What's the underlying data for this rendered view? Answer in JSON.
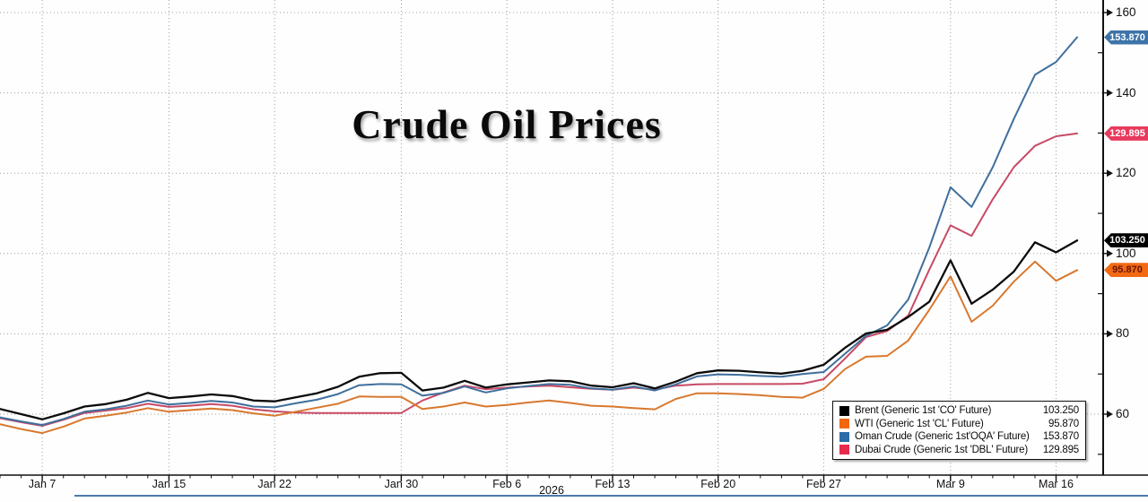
{
  "title": "Crude Oil Prices",
  "axis": {
    "year_label": "2026",
    "x_ticks": [
      {
        "label": "Jan 7",
        "i": 2
      },
      {
        "label": "Jan 15",
        "i": 8
      },
      {
        "label": "Jan 22",
        "i": 13
      },
      {
        "label": "Jan 30",
        "i": 19
      },
      {
        "label": "Feb 6",
        "i": 24
      },
      {
        "label": "Feb 13",
        "i": 29
      },
      {
        "label": "Feb 20",
        "i": 34
      },
      {
        "label": "Feb 27",
        "i": 39
      },
      {
        "label": "Mar 9",
        "i": 45
      },
      {
        "label": "Mar 16",
        "i": 50
      }
    ],
    "y_major_ticks": [
      60,
      80,
      100,
      120,
      140,
      160
    ],
    "y_minor_ticks": [
      50,
      70,
      90,
      110,
      130,
      150
    ]
  },
  "chart_data": {
    "type": "line",
    "x_axis": "Trading days, early Jan 2026 to mid Mar 2026",
    "y_range": [
      50,
      163
    ],
    "grid": "dotted gray, horizontal every 20, vertical at date ticks",
    "legend_position": "bottom-right",
    "series": [
      {
        "name": "brent",
        "label": "Brent (Generic 1st 'CO' Future)",
        "last_value": "103.250",
        "line_color": "#0b0b0b",
        "swatch_color": "#000000",
        "tag_bg": "#000000",
        "tag_fg": "#ffffff",
        "values": [
          61.3,
          60.0,
          58.7,
          60.2,
          61.9,
          62.5,
          63.6,
          65.3,
          64.0,
          64.4,
          64.9,
          64.5,
          63.4,
          63.2,
          64.2,
          65.2,
          66.8,
          69.3,
          70.2,
          70.3,
          65.9,
          66.6,
          68.3,
          66.6,
          67.4,
          67.9,
          68.4,
          68.2,
          67.1,
          66.7,
          67.7,
          66.4,
          68.1,
          70.2,
          70.9,
          70.8,
          70.4,
          70.1,
          70.8,
          72.3,
          76.5,
          80.1,
          81.0,
          84.2,
          88.0,
          98.3,
          87.5,
          91.0,
          95.5,
          102.8,
          100.3,
          103.25
        ]
      },
      {
        "name": "wti",
        "label": "WTI (Generic 1st 'CL' Future)",
        "last_value": "95.870",
        "line_color": "#d8782e",
        "swatch_color": "#f2670e",
        "tag_bg": "#f26a13",
        "tag_fg": "#6b1407",
        "values": [
          57.5,
          56.3,
          55.3,
          56.9,
          58.9,
          59.6,
          60.4,
          61.5,
          60.6,
          61.0,
          61.4,
          61.0,
          60.2,
          59.6,
          60.6,
          61.6,
          62.6,
          64.4,
          64.3,
          64.3,
          61.3,
          61.9,
          62.9,
          61.9,
          62.3,
          62.9,
          63.4,
          62.8,
          62.1,
          61.9,
          61.5,
          61.2,
          63.8,
          65.2,
          65.2,
          65.0,
          64.7,
          64.3,
          64.1,
          66.3,
          71.2,
          74.3,
          74.5,
          78.3,
          86.0,
          94.3,
          83.0,
          87.0,
          93.0,
          98.0,
          93.2,
          95.87
        ]
      },
      {
        "name": "oman",
        "label": "Oman Crude (Generic 1st'OQA' Future)",
        "last_value": "153.870",
        "line_color": "#3f6f9d",
        "swatch_color": "#2b6da8",
        "tag_bg": "#3d73a8",
        "tag_fg": "#ffffff",
        "values": [
          59.2,
          58.2,
          57.3,
          58.8,
          60.6,
          61.2,
          62.1,
          63.4,
          62.4,
          62.8,
          63.3,
          62.9,
          61.9,
          61.7,
          62.7,
          63.6,
          65.0,
          67.2,
          67.5,
          67.4,
          64.6,
          65.3,
          66.9,
          65.4,
          66.4,
          67.0,
          67.5,
          67.3,
          66.4,
          66.1,
          66.9,
          65.9,
          67.4,
          69.4,
          69.9,
          69.8,
          69.5,
          69.3,
          70.0,
          70.5,
          75.0,
          79.5,
          82.1,
          88.5,
          101.5,
          116.5,
          111.6,
          121.5,
          133.5,
          144.5,
          147.7,
          153.87
        ]
      },
      {
        "name": "dubai",
        "label": "Dubai Crude (Generic 1st 'DBL' Future)",
        "last_value": "129.895",
        "line_color": "#c84a66",
        "swatch_color": "#e82a4e",
        "tag_bg": "#e73a5d",
        "tag_fg": "#ffffff",
        "values": [
          59.0,
          58.0,
          57.1,
          58.6,
          60.3,
          60.9,
          61.5,
          62.6,
          61.8,
          62.1,
          62.5,
          62.1,
          61.2,
          60.7,
          60.4,
          60.3,
          60.3,
          60.3,
          60.3,
          60.3,
          63.4,
          65.4,
          67.1,
          66.2,
          66.6,
          66.9,
          67.1,
          66.7,
          66.3,
          66.1,
          66.6,
          66.1,
          67.1,
          67.4,
          67.5,
          67.5,
          67.5,
          67.5,
          67.6,
          68.7,
          73.8,
          79.2,
          80.7,
          84.5,
          96.0,
          107.0,
          104.4,
          113.5,
          121.5,
          126.8,
          129.2,
          129.895
        ]
      }
    ]
  }
}
